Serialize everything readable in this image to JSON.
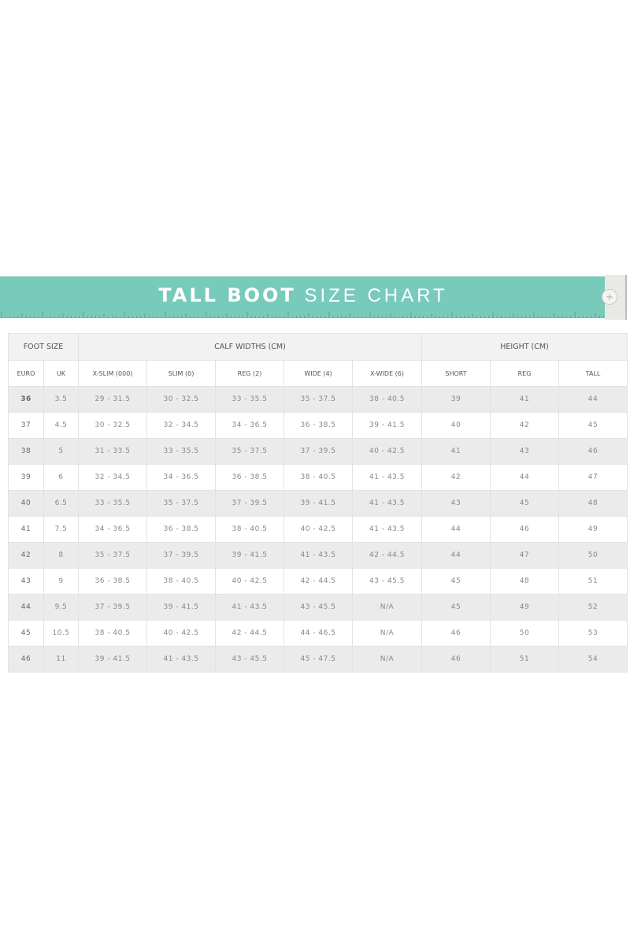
{
  "banner": {
    "title_bold": "TALL BOOT",
    "title_light": "SIZE CHART",
    "accent_color": "#78cabb",
    "icon": "plus-circle-icon"
  },
  "table": {
    "groups": [
      "FOOT SIZE",
      "CALF WIDTHS (CM)",
      "HEIGHT (CM)"
    ],
    "columns": [
      "EURO",
      "UK",
      "X-SLIM (000)",
      "SLIM (0)",
      "REG (2)",
      "WIDE (4)",
      "X-WIDE (6)",
      "SHORT",
      "REG",
      "TALL"
    ],
    "rows": [
      [
        "36",
        "3.5",
        "29 - 31.5",
        "30 - 32.5",
        "33 - 35.5",
        "35 - 37.5",
        "38 - 40.5",
        "39",
        "41",
        "44"
      ],
      [
        "37",
        "4.5",
        "30 - 32.5",
        "32 - 34.5",
        "34 - 36.5",
        "36 - 38.5",
        "39 - 41.5",
        "40",
        "42",
        "45"
      ],
      [
        "38",
        "5",
        "31 - 33.5",
        "33 - 35.5",
        "35 - 37.5",
        "37 - 39.5",
        "40 - 42.5",
        "41",
        "43",
        "46"
      ],
      [
        "39",
        "6",
        "32 - 34.5",
        "34 - 36.5",
        "36 - 38.5",
        "38 - 40.5",
        "41 - 43.5",
        "42",
        "44",
        "47"
      ],
      [
        "40",
        "6.5",
        "33 - 35.5",
        "35 - 37.5",
        "37 - 39.5",
        "39 - 41.5",
        "41 - 43.5",
        "43",
        "45",
        "48"
      ],
      [
        "41",
        "7.5",
        "34 - 36.5",
        "36 - 38.5",
        "38 - 40.5",
        "40 - 42.5",
        "41 - 43.5",
        "44",
        "46",
        "49"
      ],
      [
        "42",
        "8",
        "35 - 37.5",
        "37 - 39.5",
        "39 - 41.5",
        "41 - 43.5",
        "42 - 44.5",
        "44",
        "47",
        "50"
      ],
      [
        "43",
        "9",
        "36 - 38.5",
        "38 - 40.5",
        "40 - 42.5",
        "42 - 44.5",
        "43 - 45.5",
        "45",
        "48",
        "51"
      ],
      [
        "44",
        "9.5",
        "37 - 39.5",
        "39 - 41.5",
        "41 - 43.5",
        "43 - 45.5",
        "N/A",
        "45",
        "49",
        "52"
      ],
      [
        "45",
        "10.5",
        "38 - 40.5",
        "40 - 42.5",
        "42 - 44.5",
        "44 - 46.5",
        "N/A",
        "46",
        "50",
        "53"
      ],
      [
        "46",
        "11",
        "39 - 41.5",
        "41 - 43.5",
        "43 - 45.5",
        "45 - 47.5",
        "N/A",
        "46",
        "51",
        "54"
      ]
    ]
  }
}
